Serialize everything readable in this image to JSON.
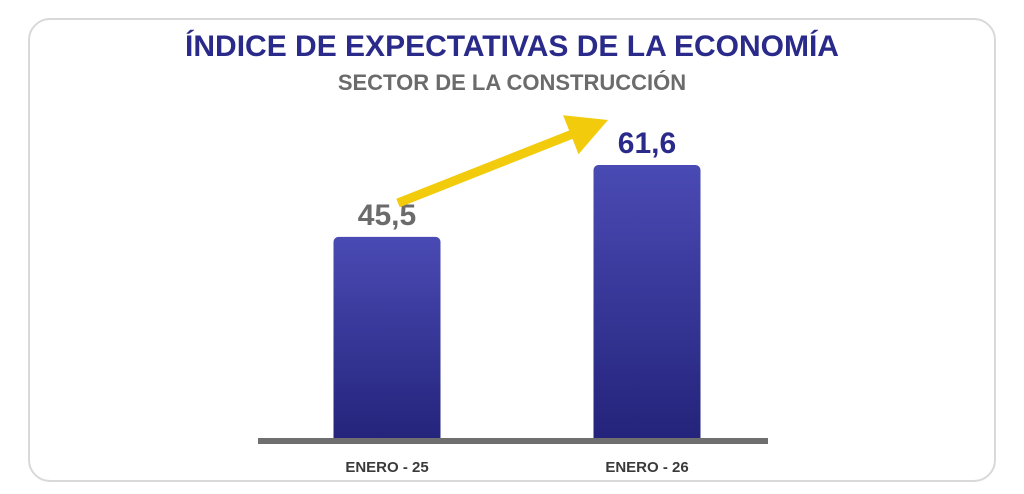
{
  "title": "ÍNDICE DE EXPECTATIVAS DE LA ECONOMÍA",
  "subtitle": "SECTOR DE LA CONSTRUCCIÓN",
  "colors": {
    "title": "#2a2a8a",
    "subtitle": "#6b6b6b",
    "bar_top": "#4a4ab4",
    "bar_bottom": "#23237a",
    "label_first": "#6b6b6b",
    "label_second": "#2a2a8a",
    "arrow": "#f2cc0c",
    "baseline": "#6f6f6f",
    "category": "#3a3a3a"
  },
  "chart_data": {
    "type": "bar",
    "categories": [
      "ENERO - 25",
      "ENERO - 26"
    ],
    "values": [
      45.5,
      61.6
    ],
    "value_labels": [
      "45,5",
      "61,6"
    ],
    "title": "ÍNDICE DE EXPECTATIVAS DE LA ECONOMÍA",
    "subtitle": "SECTOR DE LA CONSTRUCCIÓN",
    "xlabel": "",
    "ylabel": "",
    "ylim": [
      0,
      65
    ],
    "grid": false,
    "legend": "none",
    "annotation": "yellow upward arrow from first bar to second bar"
  }
}
